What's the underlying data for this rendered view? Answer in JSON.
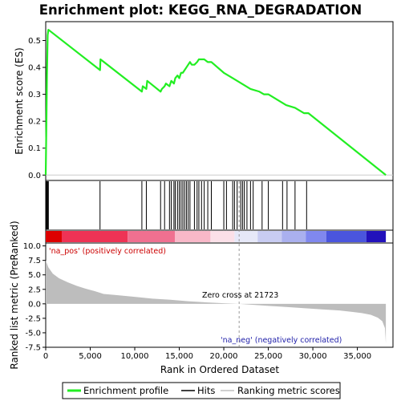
{
  "chart_data": {
    "type": "line",
    "title": "Enrichment plot: KEGG_RNA_DEGRADATION",
    "xlabel": "Rank in Ordered Dataset",
    "ylabel_top": "Enrichment score (ES)",
    "ylabel_bottom": "Ranked list metric (PreRanked)",
    "x_range": [
      0,
      39000
    ],
    "x_ticks": [
      0,
      5000,
      10000,
      15000,
      20000,
      25000,
      30000,
      35000
    ],
    "x_tick_labels": [
      "0",
      "5,000",
      "10,000",
      "15,000",
      "20,000",
      "25,000",
      "30,000",
      "35,000"
    ],
    "es_range": [
      -0.02,
      0.57
    ],
    "es_ticks": [
      0.0,
      0.1,
      0.2,
      0.3,
      0.4,
      0.5
    ],
    "es_tick_labels": [
      "0.0",
      "0.1",
      "0.2",
      "0.3",
      "0.4",
      "0.5"
    ],
    "metric_range": [
      -7.5,
      10.5
    ],
    "metric_ticks": [
      10.0,
      7.5,
      5.0,
      2.5,
      0.0,
      -2.5,
      -5.0,
      -7.5
    ],
    "metric_tick_labels": [
      "10.0",
      "7.5",
      "5.0",
      "2.5",
      "0.0",
      "-2.5",
      "-5.0",
      "-7.5"
    ],
    "es_curve": {
      "x": [
        0,
        80,
        140,
        220,
        300,
        6100,
        6150,
        10800,
        10900,
        11300,
        11400,
        12900,
        13050,
        13350,
        13500,
        13900,
        14100,
        14400,
        14550,
        14800,
        15000,
        15200,
        15400,
        15600,
        15800,
        16000,
        16200,
        16400,
        16700,
        17000,
        17200,
        17500,
        17800,
        18200,
        18600,
        20000,
        21000,
        22000,
        23000,
        24000,
        24500,
        25000,
        26500,
        27000,
        28000,
        29000,
        29500,
        38200
      ],
      "y": [
        0.0,
        0.2,
        0.37,
        0.52,
        0.54,
        0.39,
        0.43,
        0.31,
        0.33,
        0.32,
        0.35,
        0.31,
        0.32,
        0.33,
        0.34,
        0.33,
        0.35,
        0.34,
        0.36,
        0.37,
        0.36,
        0.38,
        0.38,
        0.39,
        0.4,
        0.41,
        0.42,
        0.41,
        0.41,
        0.42,
        0.43,
        0.43,
        0.43,
        0.42,
        0.42,
        0.38,
        0.36,
        0.34,
        0.32,
        0.31,
        0.3,
        0.3,
        0.27,
        0.26,
        0.25,
        0.23,
        0.23,
        0.0
      ]
    },
    "hits": [
      80,
      140,
      220,
      300,
      6100,
      10800,
      11300,
      12900,
      13350,
      13900,
      14100,
      14400,
      14550,
      14800,
      15000,
      15200,
      15400,
      15600,
      15800,
      16000,
      16200,
      16700,
      17000,
      17200,
      17500,
      17800,
      18200,
      18600,
      20000,
      20300,
      21000,
      21200,
      21500,
      21900,
      22100,
      22300,
      22600,
      23000,
      23300,
      24300,
      25000,
      26600,
      27100,
      28000,
      29300
    ],
    "metric_curve": {
      "x": [
        0,
        300,
        800,
        1500,
        2500,
        3500,
        4500,
        5500,
        6500,
        8000,
        10000,
        12000,
        14000,
        16000,
        18000,
        20000,
        21723,
        23000,
        25000,
        27000,
        29000,
        31000,
        33000,
        34500,
        35500,
        36500,
        37300,
        37800,
        38100,
        38200
      ],
      "y": [
        7.5,
        6.3,
        5.2,
        4.4,
        3.7,
        3.1,
        2.6,
        2.2,
        1.7,
        1.5,
        1.2,
        0.9,
        0.7,
        0.45,
        0.25,
        0.1,
        0.0,
        -0.15,
        -0.35,
        -0.55,
        -0.75,
        -0.95,
        -1.15,
        -1.4,
        -1.6,
        -1.9,
        -2.4,
        -3.0,
        -4.2,
        -6.8
      ]
    },
    "zero_cross_x": 21723,
    "annotations": {
      "pos": "'na_pos' (positively correlated)",
      "neg": "'na_neg' (negatively correlated)",
      "zero": "Zero cross at 21723"
    },
    "legend_placement": "bottom",
    "legend": [
      {
        "name": "Enrichment profile",
        "color": "#00ee00"
      },
      {
        "name": "Hits",
        "color": "#000000"
      },
      {
        "name": "Ranking metric scores",
        "color": "#c0c0c0"
      }
    ],
    "colors": {
      "es_line": "#22ee22",
      "hit": "#000000",
      "metric_fill": "#bdbdbd",
      "zero_line": "#999999",
      "axes": "#000000"
    },
    "heatmap_bar": [
      {
        "from": 0,
        "to": 1800,
        "color": "#dd0000"
      },
      {
        "from": 1800,
        "to": 9200,
        "color": "#ee3355"
      },
      {
        "from": 9200,
        "to": 14500,
        "color": "#f07090"
      },
      {
        "from": 14500,
        "to": 18500,
        "color": "#f8b8c8"
      },
      {
        "from": 18500,
        "to": 21200,
        "color": "#fbe0e8"
      },
      {
        "from": 21200,
        "to": 23800,
        "color": "#e6e8f8"
      },
      {
        "from": 23800,
        "to": 26500,
        "color": "#c8ccf2"
      },
      {
        "from": 26500,
        "to": 29200,
        "color": "#aab0ee"
      },
      {
        "from": 29200,
        "to": 31500,
        "color": "#8088ee"
      },
      {
        "from": 31500,
        "to": 36000,
        "color": "#4a55dd"
      },
      {
        "from": 36000,
        "to": 38200,
        "color": "#2211bb"
      }
    ]
  }
}
